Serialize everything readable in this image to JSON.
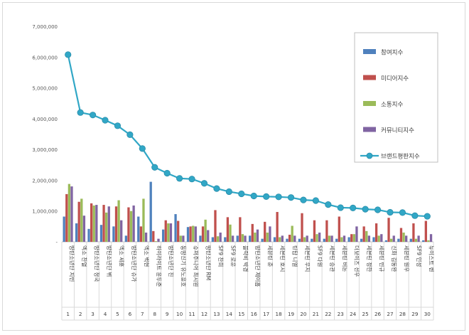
{
  "chart_data": {
    "type": "bar",
    "ylim": [
      0,
      7000000
    ],
    "y_ticks": [
      "7,000,000",
      "6,000,000",
      "5,000,000",
      "4,000,000",
      "3,000,000",
      "2,000,000",
      "1,000,000",
      "-"
    ],
    "y_tick_values": [
      7000000,
      6000000,
      5000000,
      4000000,
      3000000,
      2000000,
      1000000,
      0
    ],
    "categories": [
      "방탄소년단 지민",
      "엑소 찬열",
      "방탄소년단 정국",
      "방탄소년단 뷔",
      "엑소 세훈",
      "방탄소년단 슈가",
      "엑소 백현",
      "하이라이트 윤두준",
      "방탄소년단 진",
      "동방신기 유노윤호",
      "슈퍼주니어 최시원",
      "방탄소년단 RM",
      "SF9 찬희",
      "SF9 로운",
      "블락비 박경",
      "방탄소년단 제이홉",
      "세븐틴 준",
      "세븐틴 호시",
      "틴탑 니엘",
      "세븐틴 우지",
      "SF9 다원",
      "세븐틴 승관",
      "세븐틴 버논",
      "더보이즈 선우",
      "세븐틴 정한",
      "세븐틴 민규",
      "신화 김동완",
      "세븐틴 원우",
      "SF9 인성",
      "뉴이스트 렌"
    ],
    "index_labels": [
      "1",
      "2",
      "3",
      "4",
      "5",
      "6",
      "7",
      "8",
      "9",
      "10",
      "11",
      "12",
      "13",
      "14",
      "15",
      "16",
      "17",
      "18",
      "19",
      "20",
      "21",
      "22",
      "23",
      "24",
      "25",
      "26",
      "27",
      "28",
      "29",
      "30"
    ],
    "series": [
      {
        "name": "참여지수",
        "color": "#4f81bd",
        "type": "bar",
        "values": [
          820000,
          600000,
          420000,
          550000,
          500000,
          200000,
          820000,
          1950000,
          400000,
          900000,
          480000,
          200000,
          150000,
          150000,
          200000,
          200000,
          100000,
          150000,
          100000,
          100000,
          100000,
          100000,
          100000,
          150000,
          100000,
          150000,
          50000,
          100000,
          100000,
          50000
        ]
      },
      {
        "name": "미디어지수",
        "color": "#c0504d",
        "type": "bar",
        "values": [
          1550000,
          1300000,
          1250000,
          1200000,
          1150000,
          1120000,
          500000,
          350000,
          700000,
          680000,
          500000,
          500000,
          1030000,
          800000,
          800000,
          580000,
          650000,
          970000,
          230000,
          930000,
          700000,
          700000,
          820000,
          250000,
          500000,
          600000,
          780000,
          450000,
          600000,
          680000
        ]
      },
      {
        "name": "소통지수",
        "color": "#9bbb59",
        "type": "bar",
        "values": [
          1880000,
          1400000,
          1180000,
          950000,
          1350000,
          1000000,
          1400000,
          20000,
          600000,
          200000,
          520000,
          720000,
          180000,
          560000,
          250000,
          300000,
          300000,
          150000,
          520000,
          150000,
          250000,
          200000,
          150000,
          250000,
          350000,
          200000,
          100000,
          300000,
          100000,
          50000
        ]
      },
      {
        "name": "커뮤니티지수",
        "color": "#8064a2",
        "type": "bar",
        "values": [
          1800000,
          850000,
          1200000,
          1150000,
          700000,
          1180000,
          300000,
          100000,
          600000,
          200000,
          500000,
          380000,
          300000,
          200000,
          200000,
          400000,
          500000,
          200000,
          200000,
          200000,
          300000,
          200000,
          200000,
          500000,
          200000,
          250000,
          200000,
          200000,
          200000,
          250000
        ]
      },
      {
        "name": "브랜드평판지수",
        "color": "#31a7c6",
        "type": "line",
        "values": [
          6080000,
          4200000,
          4120000,
          3950000,
          3770000,
          3480000,
          3030000,
          2420000,
          2230000,
          2060000,
          2040000,
          1900000,
          1730000,
          1630000,
          1560000,
          1490000,
          1470000,
          1460000,
          1440000,
          1360000,
          1340000,
          1210000,
          1110000,
          1100000,
          1060000,
          1040000,
          960000,
          950000,
          850000,
          830000
        ]
      }
    ]
  }
}
